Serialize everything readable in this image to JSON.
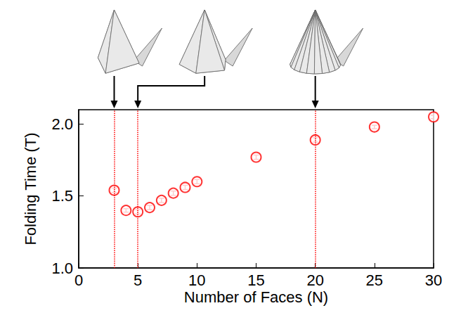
{
  "chart_data": {
    "type": "scatter",
    "xlabel": "Number of Faces (N)",
    "ylabel": "Folding Time (T)",
    "x": [
      3,
      4,
      5,
      6,
      7,
      8,
      9,
      10,
      15,
      20,
      25,
      30
    ],
    "values": [
      1.54,
      1.4,
      1.39,
      1.42,
      1.47,
      1.52,
      1.56,
      1.6,
      1.77,
      1.89,
      1.98,
      2.05
    ],
    "errors": [
      0.015,
      0.012,
      0.015,
      0.015,
      0.015,
      0.015,
      0.015,
      0.015,
      0.015,
      0.015,
      0.012,
      0.012
    ],
    "color": "#ff0000",
    "marker": "open_circle",
    "xlim": [
      0,
      30
    ],
    "xticks": [
      0,
      5,
      10,
      15,
      20,
      25,
      30
    ],
    "ylim": [
      1.0,
      2.1
    ],
    "yticks": [
      {
        "value": 1.0,
        "label": "1.0"
      },
      {
        "value": 1.5,
        "label": "1.5"
      },
      {
        "value": 2.0,
        "label": "2.0"
      }
    ],
    "grid": false,
    "vlines": [
      3,
      5,
      20
    ]
  }
}
